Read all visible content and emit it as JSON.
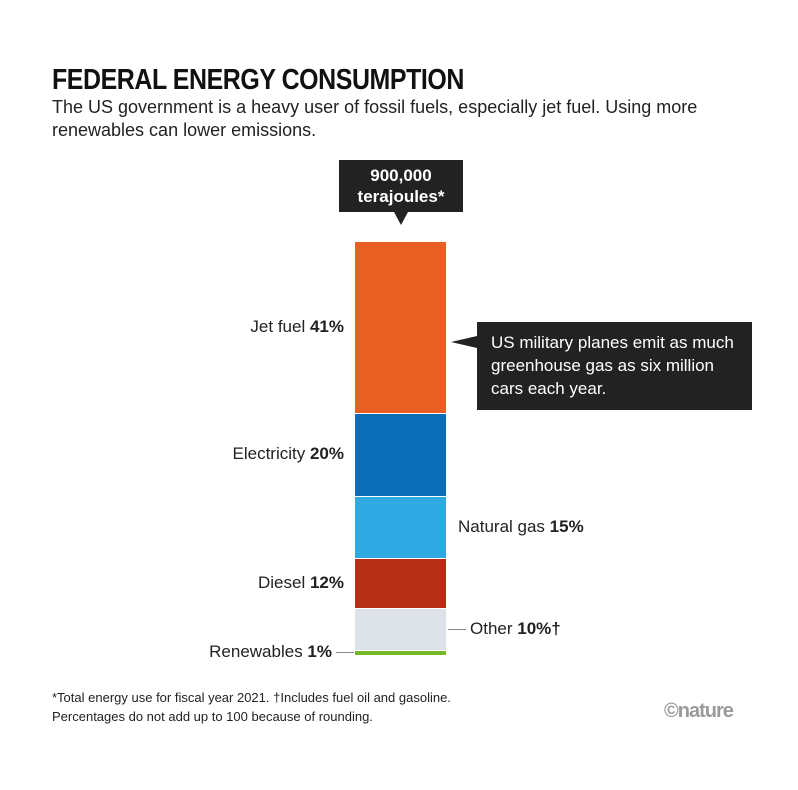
{
  "title": "FEDERAL ENERGY CONSUMPTION",
  "subtitle": "The US government is a heavy user of fossil fuels, especially jet fuel. Using more renewables can lower emissions.",
  "total_callout": {
    "line1": "900,000",
    "line2": "terajoules*"
  },
  "side_callout": "US military planes emit as much greenhouse gas as six million cars each year.",
  "footnote": {
    "line1": "*Total energy use for fiscal year 2021. †Includes fuel oil and gasoline.",
    "line2": "Percentages do not add up to 100 because of rounding."
  },
  "logo": "©nature",
  "chart_data": {
    "type": "stacked-bar",
    "unit": "%",
    "series": [
      {
        "name": "Jet fuel",
        "value": 41,
        "pct": "41%",
        "color": "#e95e23",
        "side": "left"
      },
      {
        "name": "Electricity",
        "value": 20,
        "pct": "20%",
        "color": "#0a6db5",
        "side": "left"
      },
      {
        "name": "Natural gas",
        "value": 15,
        "pct": "15%",
        "color": "#2fa9e1",
        "side": "right"
      },
      {
        "name": "Diesel",
        "value": 12,
        "pct": "12%",
        "color": "#b62f14",
        "side": "left"
      },
      {
        "name": "Other",
        "value": 10,
        "pct": "10%†",
        "color": "#dde2e9",
        "side": "right"
      },
      {
        "name": "Renewables",
        "value": 1,
        "pct": "1%",
        "color": "#76b72a",
        "side": "left"
      }
    ]
  }
}
